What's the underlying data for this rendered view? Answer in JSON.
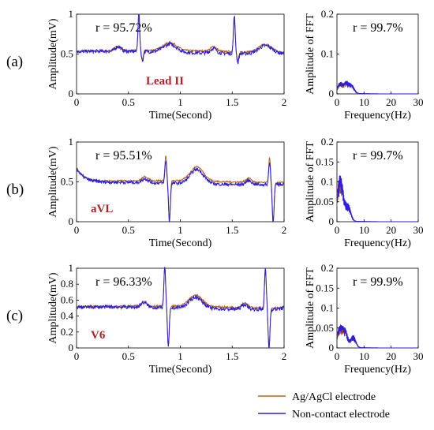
{
  "colors": {
    "agagcl": "#b5651d",
    "noncontact": "#2a1de0",
    "lead_label": "#b22222",
    "axis": "#000000"
  },
  "legend": {
    "placement": "bottom-right",
    "items": [
      {
        "label": "Ag/AgCl electrode",
        "color_key": "agagcl"
      },
      {
        "label": "Non-contact electrode",
        "color_key": "noncontact"
      }
    ]
  },
  "chart_data": [
    {
      "type": "line",
      "panel": "(a)",
      "lead": "Lead II",
      "annotation": "r = 95.72%",
      "xlabel": "Time(Second)",
      "ylabel": "Amplitude(mV)",
      "xlim": [
        0,
        2
      ],
      "ylim": [
        0,
        1
      ],
      "xticks": [
        0,
        0.5,
        1,
        1.5,
        2
      ],
      "yticks": [
        0,
        0.5,
        1
      ],
      "beats": [
        0.6,
        1.52
      ],
      "baseline": 0.52,
      "p_wave": 0.06,
      "t_wave": 0.1,
      "s_depth": 0.12,
      "series": [
        {
          "name": "Ag/AgCl electrode",
          "r_peak": 0.92,
          "offset": 0.01,
          "noise": 0.012
        },
        {
          "name": "Non-contact electrode",
          "r_peak": 1.0,
          "offset": 0.0,
          "noise": 0.022
        }
      ]
    },
    {
      "type": "line",
      "panel": "(a)",
      "annotation": "r = 99.7%",
      "xlabel": "Frequency(Hz)",
      "ylabel": "Amplitude of FFT",
      "xlim": [
        0,
        30
      ],
      "ylim": [
        0,
        0.2
      ],
      "xticks": [
        0,
        10,
        20,
        30
      ],
      "yticks": [
        0,
        0.1,
        0.2
      ],
      "peaks": [
        {
          "f": 1.2,
          "a": 0.025
        },
        {
          "f": 3.5,
          "a": 0.028
        },
        {
          "f": 5.5,
          "a": 0.02
        }
      ]
    },
    {
      "type": "line",
      "panel": "(b)",
      "lead": "aVL",
      "annotation": "r = 95.51%",
      "xlabel": "Time(Second)",
      "ylabel": "Amplitude(mV)",
      "xlim": [
        0,
        2
      ],
      "ylim": [
        0,
        1
      ],
      "xticks": [
        0,
        0.5,
        1,
        1.5,
        2
      ],
      "yticks": [
        0,
        0.5,
        1
      ],
      "beats": [
        0.86,
        1.86
      ],
      "baseline": 0.48,
      "p_wave": 0.05,
      "t_wave": 0.18,
      "s_depth": 0.48,
      "start_level": 0.66,
      "series": [
        {
          "name": "Ag/AgCl electrode",
          "r_peak": 0.8,
          "offset": 0.02,
          "noise": 0.01
        },
        {
          "name": "Non-contact electrode",
          "r_peak": 0.76,
          "offset": 0.0,
          "noise": 0.02
        }
      ]
    },
    {
      "type": "line",
      "panel": "(b)",
      "annotation": "r = 99.7%",
      "xlabel": "Frequency(Hz)",
      "ylabel": "Amplitude of FFT",
      "xlim": [
        0,
        30
      ],
      "ylim": [
        0,
        0.2
      ],
      "xticks": [
        0,
        10,
        20,
        30
      ],
      "yticks": [
        0,
        0.05,
        0.1,
        0.15,
        0.2
      ],
      "peaks": [
        {
          "f": 0.8,
          "a": 0.085
        },
        {
          "f": 2.0,
          "a": 0.055
        },
        {
          "f": 4.2,
          "a": 0.04
        }
      ]
    },
    {
      "type": "line",
      "panel": "(c)",
      "lead": "V6",
      "annotation": "r = 96.33%",
      "xlabel": "Time(Second)",
      "ylabel": "Amplitude(mV)",
      "xlim": [
        0,
        2
      ],
      "ylim": [
        0,
        1
      ],
      "xticks": [
        0,
        0.5,
        1,
        1.5,
        2
      ],
      "yticks": [
        0,
        0.2,
        0.4,
        0.6,
        0.8,
        1
      ],
      "beats": [
        0.85,
        1.82
      ],
      "baseline": 0.5,
      "p_wave": 0.06,
      "t_wave": 0.14,
      "s_depth": 0.5,
      "series": [
        {
          "name": "Ag/AgCl electrode",
          "r_peak": 1.0,
          "offset": 0.01,
          "noise": 0.012
        },
        {
          "name": "Non-contact electrode",
          "r_peak": 1.0,
          "offset": 0.0,
          "noise": 0.022
        }
      ]
    },
    {
      "type": "line",
      "panel": "(c)",
      "annotation": "r = 99.9%",
      "xlabel": "Frequency(Hz)",
      "ylabel": "Amplitude of FFT",
      "xlim": [
        0,
        30
      ],
      "ylim": [
        0,
        0.2
      ],
      "xticks": [
        0,
        10,
        20,
        30
      ],
      "yticks": [
        0,
        0.05,
        0.1,
        0.15,
        0.2
      ],
      "peaks": [
        {
          "f": 1.0,
          "a": 0.05
        },
        {
          "f": 3.0,
          "a": 0.045
        },
        {
          "f": 6.0,
          "a": 0.03
        }
      ]
    }
  ]
}
